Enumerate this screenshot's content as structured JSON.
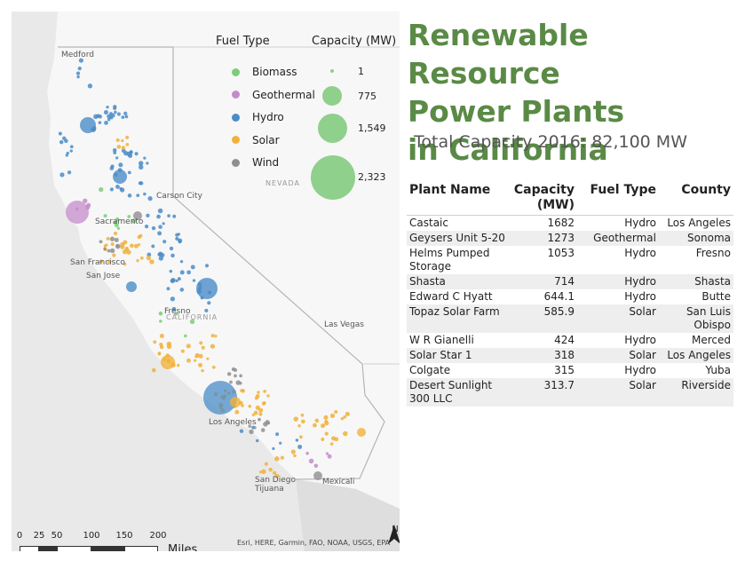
{
  "map": {
    "cities": [
      "Medford",
      "Carson City",
      "Sacramento",
      "San Francisco",
      "San Jose",
      "Fresno",
      "Las Vegas",
      "Los Angeles",
      "San Diego",
      "Tijuana",
      "Mexicali"
    ],
    "states": [
      "NEVADA",
      "CALIFORNIA"
    ],
    "colors": {
      "land": "#f7f7f7",
      "background": "#e9e9e9",
      "border": "#b5b5b5",
      "mexico": "#dedede"
    },
    "attribution": "Esri, HERE, Garmin, FAO, NOAA, USGS, EPA",
    "north_label": "N"
  },
  "legend": {
    "fuel_title": "Fuel Type",
    "capacity_title": "Capacity (MW)",
    "fuel_types": [
      {
        "label": "Biomass",
        "color": "#7ccd7a"
      },
      {
        "label": "Geothermal",
        "color": "#c48ccb"
      },
      {
        "label": "Hydro",
        "color": "#4a8cc8"
      },
      {
        "label": "Solar",
        "color": "#f0b23a"
      },
      {
        "label": "Wind",
        "color": "#8f8f8f"
      }
    ],
    "capacities": [
      "1",
      "775",
      "1,549",
      "2,323"
    ],
    "capacity_color": "#8fd08c"
  },
  "scalebar": {
    "ticks": [
      "0",
      "25",
      "50",
      "100",
      "150",
      "200"
    ],
    "unit": "Miles"
  },
  "title": {
    "line1": "Renewable Resource",
    "line2": "Power Plants",
    "line3": "in California"
  },
  "subtitle": "Total Capacity 2016: 82,100 MW",
  "table": {
    "headers": {
      "name": "Plant Name",
      "capacity": "Capacity (MW)",
      "fuel": "Fuel Type",
      "county": "County"
    },
    "rows": [
      {
        "name": "Castaic",
        "capacity": "1682",
        "fuel": "Hydro",
        "county": "Los Angeles"
      },
      {
        "name": "Geysers Unit 5-20",
        "capacity": "1273",
        "fuel": "Geothermal",
        "county": "Sonoma"
      },
      {
        "name": "Helms Pumped Storage",
        "capacity": "1053",
        "fuel": "Hydro",
        "county": "Fresno"
      },
      {
        "name": "Shasta",
        "capacity": "714",
        "fuel": "Hydro",
        "county": "Shasta"
      },
      {
        "name": "Edward C Hyatt",
        "capacity": "644.1",
        "fuel": "Hydro",
        "county": "Butte"
      },
      {
        "name": "Topaz Solar Farm",
        "capacity": "585.9",
        "fuel": "Solar",
        "county": "San Luis Obispo"
      },
      {
        "name": "W R Gianelli",
        "capacity": "424",
        "fuel": "Hydro",
        "county": "Merced"
      },
      {
        "name": "Solar Star 1",
        "capacity": "318",
        "fuel": "Solar",
        "county": "Los Angeles"
      },
      {
        "name": "Colgate",
        "capacity": "315",
        "fuel": "Hydro",
        "county": "Yuba"
      },
      {
        "name": "Desert Sunlight 300 LLC",
        "capacity": "313.7",
        "fuel": "Solar",
        "county": "Riverside"
      }
    ]
  }
}
